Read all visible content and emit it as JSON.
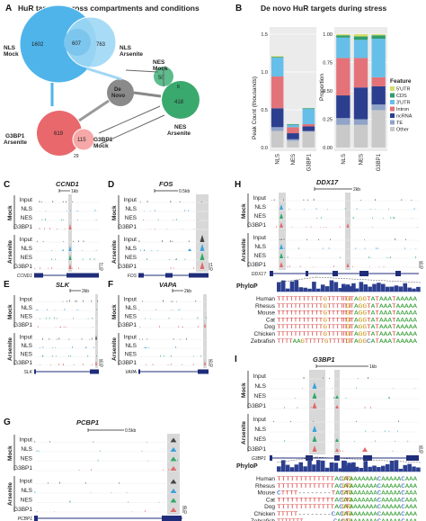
{
  "panels": {
    "A": {
      "letter": "A",
      "title": "HuR targets across compartments and conditions",
      "venn": {
        "nls_mock_only": "1602",
        "overlap": "607",
        "nls_arsenite_only": "763",
        "nes_mock": "50",
        "de_novo": "",
        "nes_arsenite": "418",
        "nes_small": "8",
        "g3bp1_arsenite": "619",
        "g3bp1_overlap": "115",
        "g3bp1_mock_small": "29"
      },
      "labels": {
        "nls_mock": "NLS\nMock",
        "nls_arsenite": "NLS\nArsenite",
        "nes_mock": "NES\nMock",
        "nes_arsenite": "NES\nArsenite",
        "de_novo": "De\nNovo",
        "g3bp1_arsenite": "G3BP1\nArsenite",
        "g3bp1_mock": "G3BP1\nMock"
      }
    },
    "B": {
      "letter": "B",
      "title": "De novo HuR targets during stress"
    },
    "C": {
      "letter": "C",
      "gene": "CCND1",
      "scale": "1kb",
      "track_gene": "CCND1"
    },
    "D": {
      "letter": "D",
      "gene": "FOS",
      "scale": "0.5kb",
      "track_gene": "FOS"
    },
    "E": {
      "letter": "E",
      "gene": "SLK",
      "scale": "2kb",
      "track_gene": "SLK"
    },
    "F": {
      "letter": "F",
      "gene": "VAPA",
      "scale": "2kb",
      "track_gene": "VAPA"
    },
    "G": {
      "letter": "G",
      "gene": "PCBP1",
      "scale": "0.5kb",
      "track_gene": "PCBP1"
    },
    "H": {
      "letter": "H",
      "gene": "DDX17",
      "scale": "2kb",
      "track_gene": "DDX17",
      "phylop": "PhyloP",
      "species": [
        "Human",
        "Rhesus",
        "Mouse",
        "Cat",
        "Dog",
        "Chicken",
        "Zebrafish"
      ],
      "seq_left": [
        "TTTTTTTTTTTGTTTTTT",
        "TTTTTTTTTTTGTTTTTT",
        "TTTTTTTTTTTGTTTTTT",
        "TTTTTTTTTTTGTTTTTT",
        "TTTTTTTTTTTGTTTTTT",
        "TTTTTTTTTTTGTTTTTT",
        "TTTTAAGTTTTTGTTTTTT"
      ],
      "seq_right": [
        "TGTAGGTATAAATAAAAA",
        "TGTAGGTATAAATAAAAA",
        "TGTAGGTATAAATAAAAA",
        "TGTAGGTATAAATAAAAA",
        "TGTAGGTATAAATAAAAA",
        "TGTAGGTATAAATAAAAA",
        "TGTAGGCATAAATAAAAA"
      ]
    },
    "I": {
      "letter": "I",
      "gene": "G3BP1",
      "scale": "1kb",
      "track_gene": "G3BP1",
      "phylop": "PhyloP",
      "species": [
        "Human",
        "Rhesus",
        "Mouse",
        "Cat",
        "Dog",
        "Chicken",
        "Zebrafish"
      ],
      "seq_left": [
        "TTTTTTTTTTTTTACAG",
        "TTTTTTTTTTTTTACAG",
        "CTTTT--------TACAG",
        "TTTTTTTTTTTTTACAG",
        "TTTTTTTTTTTTTACAG",
        "TTTTT--------CACAG",
        "TTTTTTT--------CACAG"
      ],
      "seq_right": [
        "GTAAAAAAACAAAAACAAA",
        "GTAAAAAAACAAAAACAAA",
        "GTAAAAAAACAAAAACAAA",
        "GTAAAAAAACAAAAACAAA",
        "GTAAAAAAACAAAAACAAA",
        "GTAAAAAAACAAAAACAAA",
        "GTAAAAAAACAAAAACAAA"
      ]
    }
  },
  "tracks": {
    "input": "Input",
    "nls": "NLS",
    "nes": "NES",
    "g3bp1": "G3BP1",
    "mock": "Mock",
    "arsenite": "Arsenite"
  },
  "track_colors": {
    "input": "#444444",
    "nls": "#3aa3dc",
    "nes": "#2fa86a",
    "g3bp1": "#e06b6b",
    "gene": "#1f2d7a"
  },
  "scale_nums": {
    "c_top": "7",
    "c_bot": "0",
    "d_top": "1",
    "d_bot": "0",
    "e_top": "6",
    "e_bot": "0",
    "f_top": "6",
    "f_bot": "0",
    "g_top": "8",
    "g_bot": "0",
    "h_top": "6",
    "h_bot": "0",
    "i_top": "6",
    "i_bot": "0"
  },
  "chart_data": [
    {
      "type": "bar",
      "stacked": true,
      "categories": [
        "NLS",
        "NES",
        "G3BP1"
      ],
      "ylabel": "Peak Count (thousands)",
      "ylim": [
        0,
        1.5
      ],
      "yticks": [
        "0.0",
        "0.5",
        "1.0",
        "1.5"
      ],
      "series": [
        {
          "name": "5'UTR",
          "color": "#d4df6a",
          "values": [
            0.01,
            0.0,
            0.0
          ]
        },
        {
          "name": "CDS",
          "color": "#2f9e6e",
          "values": [
            0.01,
            0.01,
            0.01
          ]
        },
        {
          "name": "3'UTR",
          "color": "#66bfe8",
          "values": [
            0.25,
            0.03,
            0.2
          ]
        },
        {
          "name": "Intron",
          "color": "#e37379",
          "values": [
            0.42,
            0.08,
            0.03
          ]
        },
        {
          "name": "ncRNA",
          "color": "#2c3f8f",
          "values": [
            0.25,
            0.08,
            0.06
          ]
        },
        {
          "name": "TE",
          "color": "#90a4c9",
          "values": [
            0.05,
            0.02,
            0.01
          ]
        },
        {
          "name": "Other",
          "color": "#c9c9c9",
          "values": [
            0.22,
            0.09,
            0.21
          ]
        }
      ]
    },
    {
      "type": "bar",
      "stacked": true,
      "categories": [
        "NLS",
        "NES",
        "G3BP1"
      ],
      "ylabel": "Proportion",
      "ylim": [
        0,
        1.0
      ],
      "yticks": [
        "0.00",
        "0.25",
        "0.50",
        "0.75",
        "1.00"
      ],
      "legend_title": "Feature",
      "legend": [
        "5'UTR",
        "CDS",
        "3'UTR",
        "Intron",
        "ncRNA",
        "TE",
        "Other"
      ],
      "series": [
        {
          "name": "5'UTR",
          "color": "#d4df6a",
          "values": [
            0.01,
            0.02,
            0.01
          ]
        },
        {
          "name": "CDS",
          "color": "#2f9e6e",
          "values": [
            0.02,
            0.03,
            0.03
          ]
        },
        {
          "name": "3'UTR",
          "color": "#66bfe8",
          "values": [
            0.18,
            0.16,
            0.34
          ]
        },
        {
          "name": "Intron",
          "color": "#e37379",
          "values": [
            0.33,
            0.26,
            0.08
          ]
        },
        {
          "name": "ncRNA",
          "color": "#2c3f8f",
          "values": [
            0.2,
            0.28,
            0.16
          ]
        },
        {
          "name": "TE",
          "color": "#90a4c9",
          "values": [
            0.06,
            0.05,
            0.05
          ]
        },
        {
          "name": "Other",
          "color": "#c9c9c9",
          "values": [
            0.2,
            0.2,
            0.33
          ]
        }
      ]
    }
  ]
}
